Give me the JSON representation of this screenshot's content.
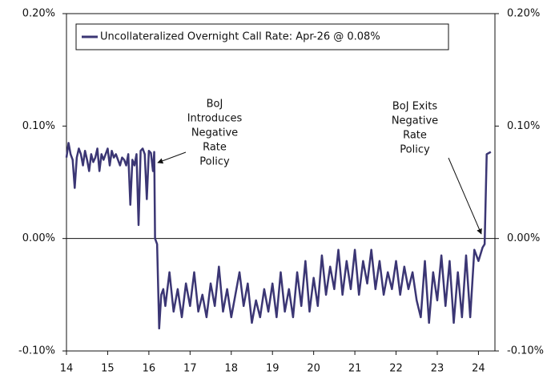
{
  "chart_data": {
    "type": "line",
    "x": [
      14.0,
      14.05,
      14.1,
      14.15,
      14.2,
      14.25,
      14.3,
      14.35,
      14.4,
      14.45,
      14.5,
      14.55,
      14.6,
      14.65,
      14.7,
      14.75,
      14.8,
      14.85,
      14.9,
      14.95,
      15.0,
      15.05,
      15.1,
      15.15,
      15.2,
      15.25,
      15.3,
      15.35,
      15.4,
      15.45,
      15.5,
      15.55,
      15.6,
      15.65,
      15.7,
      15.75,
      15.8,
      15.85,
      15.9,
      15.95,
      16.0,
      16.05,
      16.1,
      16.13,
      16.15,
      16.2,
      16.25,
      16.3,
      16.35,
      16.4,
      16.5,
      16.6,
      16.7,
      16.8,
      16.9,
      17.0,
      17.1,
      17.2,
      17.3,
      17.4,
      17.5,
      17.6,
      17.7,
      17.8,
      17.9,
      18.0,
      18.1,
      18.2,
      18.3,
      18.4,
      18.5,
      18.6,
      18.7,
      18.8,
      18.9,
      19.0,
      19.1,
      19.2,
      19.3,
      19.4,
      19.5,
      19.6,
      19.7,
      19.8,
      19.9,
      20.0,
      20.1,
      20.2,
      20.3,
      20.4,
      20.5,
      20.6,
      20.7,
      20.8,
      20.9,
      21.0,
      21.1,
      21.2,
      21.3,
      21.4,
      21.5,
      21.6,
      21.7,
      21.8,
      21.9,
      22.0,
      22.1,
      22.2,
      22.3,
      22.4,
      22.5,
      22.6,
      22.7,
      22.8,
      22.9,
      23.0,
      23.1,
      23.2,
      23.3,
      23.4,
      23.5,
      23.6,
      23.7,
      23.8,
      23.9,
      24.0,
      24.1,
      24.15,
      24.2,
      24.3
    ],
    "series": [
      {
        "name": "Uncollateralized Overnight Call Rate: Apr-26 @ 0.08%",
        "color": "#3b3674",
        "values": [
          0.072,
          0.085,
          0.075,
          0.07,
          0.045,
          0.072,
          0.08,
          0.075,
          0.065,
          0.078,
          0.07,
          0.06,
          0.075,
          0.068,
          0.072,
          0.08,
          0.06,
          0.075,
          0.07,
          0.075,
          0.08,
          0.065,
          0.078,
          0.072,
          0.075,
          0.07,
          0.065,
          0.072,
          0.07,
          0.065,
          0.075,
          0.03,
          0.07,
          0.065,
          0.075,
          0.012,
          0.078,
          0.08,
          0.075,
          0.035,
          0.078,
          0.076,
          0.06,
          0.077,
          0.0,
          -0.005,
          -0.08,
          -0.05,
          -0.045,
          -0.06,
          -0.03,
          -0.065,
          -0.045,
          -0.07,
          -0.04,
          -0.06,
          -0.03,
          -0.065,
          -0.05,
          -0.07,
          -0.04,
          -0.06,
          -0.025,
          -0.065,
          -0.045,
          -0.07,
          -0.05,
          -0.03,
          -0.06,
          -0.04,
          -0.075,
          -0.055,
          -0.07,
          -0.045,
          -0.065,
          -0.04,
          -0.07,
          -0.03,
          -0.065,
          -0.045,
          -0.07,
          -0.03,
          -0.06,
          -0.02,
          -0.065,
          -0.035,
          -0.06,
          -0.015,
          -0.05,
          -0.025,
          -0.045,
          -0.01,
          -0.05,
          -0.02,
          -0.045,
          -0.01,
          -0.05,
          -0.02,
          -0.04,
          -0.01,
          -0.045,
          -0.02,
          -0.05,
          -0.03,
          -0.045,
          -0.02,
          -0.05,
          -0.025,
          -0.045,
          -0.03,
          -0.055,
          -0.07,
          -0.02,
          -0.075,
          -0.03,
          -0.055,
          -0.015,
          -0.06,
          -0.02,
          -0.075,
          -0.03,
          -0.07,
          -0.015,
          -0.07,
          -0.01,
          -0.02,
          -0.008,
          -0.005,
          0.075,
          0.077
        ]
      }
    ],
    "xlim": [
      14,
      24.4
    ],
    "xticks": [
      14,
      15,
      16,
      17,
      18,
      19,
      20,
      21,
      22,
      23,
      24
    ],
    "ylim": [
      -0.1,
      0.2
    ],
    "yticks": [
      {
        "value": -0.1,
        "label": "-0.10%"
      },
      {
        "value": 0.0,
        "label": "0.00%"
      },
      {
        "value": 0.1,
        "label": "0.10%"
      },
      {
        "value": 0.2,
        "label": "0.20%"
      }
    ],
    "y2lim": [
      -0.1,
      0.2
    ],
    "y2ticks": [
      {
        "value": -0.1,
        "label": "-0.10%"
      },
      {
        "value": 0.0,
        "label": "0.00%"
      },
      {
        "value": 0.1,
        "label": "0.10%"
      },
      {
        "value": 0.2,
        "label": "0.20%"
      }
    ],
    "zero_line": true,
    "annotations": [
      {
        "lines": [
          "BoJ",
          "Introduces",
          "Negative",
          "Rate",
          "Policy"
        ]
      },
      {
        "lines": [
          "BoJ Exits",
          "Negative",
          "Rate",
          "Policy"
        ]
      }
    ]
  }
}
